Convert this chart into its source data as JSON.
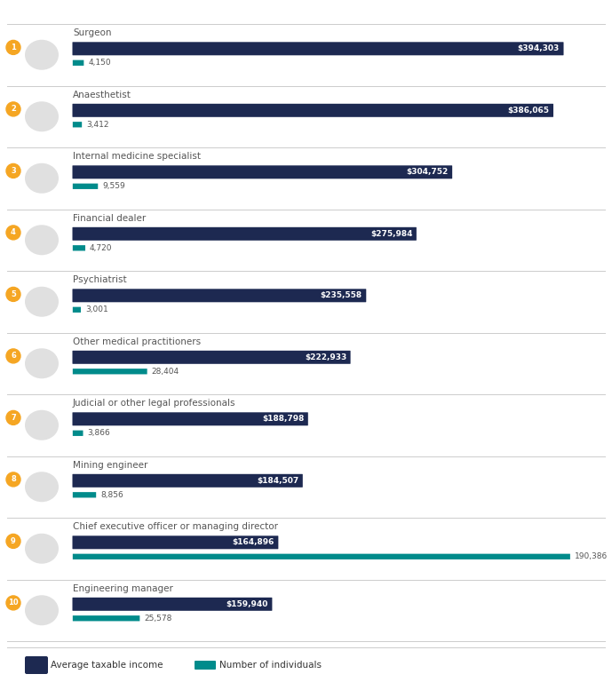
{
  "occupations": [
    {
      "rank": 1,
      "name": "Surgeon",
      "income": 394303,
      "individuals": 4150
    },
    {
      "rank": 2,
      "name": "Anaesthetist",
      "income": 386065,
      "individuals": 3412
    },
    {
      "rank": 3,
      "name": "Internal medicine specialist",
      "income": 304752,
      "individuals": 9559
    },
    {
      "rank": 4,
      "name": "Financial dealer",
      "income": 275984,
      "individuals": 4720
    },
    {
      "rank": 5,
      "name": "Psychiatrist",
      "income": 235558,
      "individuals": 3001
    },
    {
      "rank": 6,
      "name": "Other medical practitioners",
      "income": 222933,
      "individuals": 28404
    },
    {
      "rank": 7,
      "name": "Judicial or other legal professionals",
      "income": 188798,
      "individuals": 3866
    },
    {
      "rank": 8,
      "name": "Mining engineer",
      "income": 184507,
      "individuals": 8856
    },
    {
      "rank": 9,
      "name": "Chief executive officer or managing director",
      "income": 164896,
      "individuals": 190386
    },
    {
      "rank": 10,
      "name": "Engineering manager",
      "income": 159940,
      "individuals": 25578
    }
  ],
  "income_color": "#1d2951",
  "individuals_color": "#008b8b",
  "rank_badge_color": "#f5a623",
  "rank_text_color": "#ffffff",
  "background_color": "#ffffff",
  "bar_label_color": "#ffffff",
  "individuals_label_color": "#555555",
  "occupation_label_color": "#555555",
  "separator_color": "#cccccc",
  "max_income": 420000,
  "max_individuals": 200000,
  "legend_income_label": "Average taxable income",
  "legend_individuals_label": "Number of individuals",
  "font_size_name": 7.5,
  "font_size_value": 6.5,
  "font_size_rank": 6.0,
  "font_size_legend": 7.5,
  "font_size_ind_label": 6.5
}
